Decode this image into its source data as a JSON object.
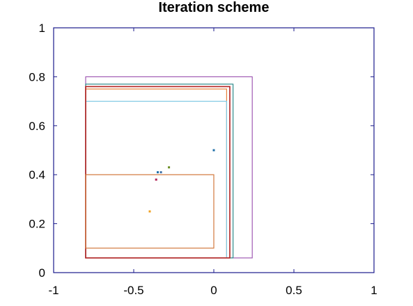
{
  "chart_data": {
    "type": "scatter",
    "title": "Iteration scheme",
    "xlabel": "",
    "ylabel": "",
    "xlim": [
      -1,
      1
    ],
    "ylim": [
      0,
      1
    ],
    "grid": false,
    "x_ticks": [
      -1,
      -0.5,
      0,
      0.5,
      1
    ],
    "x_tick_labels": [
      "-1",
      "-0.5",
      "0",
      "0.5",
      "1"
    ],
    "y_ticks": [
      0,
      0.2,
      0.4,
      0.6,
      0.8,
      1
    ],
    "y_tick_labels": [
      "0",
      "0.2",
      "0.4",
      "0.6",
      "0.8",
      "1"
    ],
    "rectangles": [
      {
        "x0": -0.8,
        "y0": 0.06,
        "x1": 0.24,
        "y1": 0.8,
        "color": "#a05ab4"
      },
      {
        "x0": -0.8,
        "y0": 0.06,
        "x1": 0.12,
        "y1": 0.77,
        "color": "#2e8b8b"
      },
      {
        "x0": -0.8,
        "y0": 0.06,
        "x1": 0.1,
        "y1": 0.76,
        "color": "#f5b48c"
      },
      {
        "x0": -0.8,
        "y0": 0.06,
        "x1": 0.08,
        "y1": 0.75,
        "color": "#e8823c"
      },
      {
        "x0": -0.8,
        "y0": 0.06,
        "x1": 0.08,
        "y1": 0.7,
        "color": "#7ec8e3"
      },
      {
        "x0": -0.8,
        "y0": 0.06,
        "x1": 0.1,
        "y1": 0.76,
        "color": "#b22222"
      },
      {
        "x0": -0.8,
        "y0": 0.1,
        "x1": 0.0,
        "y1": 0.4,
        "color": "#d2783c"
      }
    ],
    "points": [
      {
        "x": 0.0,
        "y": 0.5,
        "color": "#1f6fa8"
      },
      {
        "x": -0.28,
        "y": 0.43,
        "color": "#6b8e23"
      },
      {
        "x": -0.33,
        "y": 0.41,
        "color": "#3a6ea5"
      },
      {
        "x": -0.35,
        "y": 0.41,
        "color": "#1f6fa8"
      },
      {
        "x": -0.36,
        "y": 0.38,
        "color": "#b22255"
      },
      {
        "x": -0.4,
        "y": 0.25,
        "color": "#f0a020"
      }
    ]
  }
}
